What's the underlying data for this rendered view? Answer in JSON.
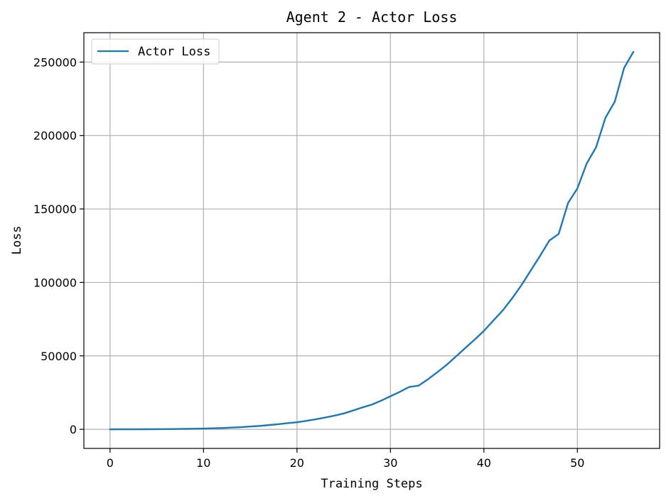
{
  "chart_data": {
    "type": "line",
    "title": "Agent 2 - Actor Loss",
    "xlabel": "Training Steps",
    "ylabel": "Loss",
    "xlim": [
      -2.8,
      58.8
    ],
    "ylim": [
      -13000,
      270000
    ],
    "xticks": [
      0,
      10,
      20,
      30,
      40,
      50
    ],
    "yticks": [
      0,
      50000,
      100000,
      150000,
      200000,
      250000
    ],
    "grid": true,
    "legend_position": "top-left",
    "series": [
      {
        "name": "Actor Loss",
        "color": "#1f77b4",
        "x": [
          0,
          1,
          2,
          3,
          4,
          5,
          6,
          7,
          8,
          9,
          10,
          11,
          12,
          13,
          14,
          15,
          16,
          17,
          18,
          19,
          20,
          21,
          22,
          23,
          24,
          25,
          26,
          27,
          28,
          29,
          30,
          31,
          32,
          33,
          34,
          35,
          36,
          37,
          38,
          39,
          40,
          41,
          42,
          43,
          44,
          45,
          46,
          47,
          48,
          49,
          50,
          51,
          52,
          53,
          54,
          55,
          56
        ],
        "y": [
          0,
          10,
          20,
          40,
          60,
          100,
          150,
          200,
          300,
          400,
          500,
          700,
          900,
          1200,
          1500,
          1900,
          2300,
          2900,
          3500,
          4200,
          4800,
          5800,
          6800,
          8000,
          9300,
          10800,
          12800,
          14900,
          16800,
          19500,
          22500,
          25500,
          28800,
          29700,
          34000,
          38800,
          43800,
          49500,
          55300,
          61000,
          67000,
          74000,
          80800,
          89000,
          98000,
          108000,
          118000,
          128500,
          133000,
          154000,
          164000,
          181000,
          192000,
          212000,
          223000,
          246000,
          257000
        ]
      }
    ]
  }
}
